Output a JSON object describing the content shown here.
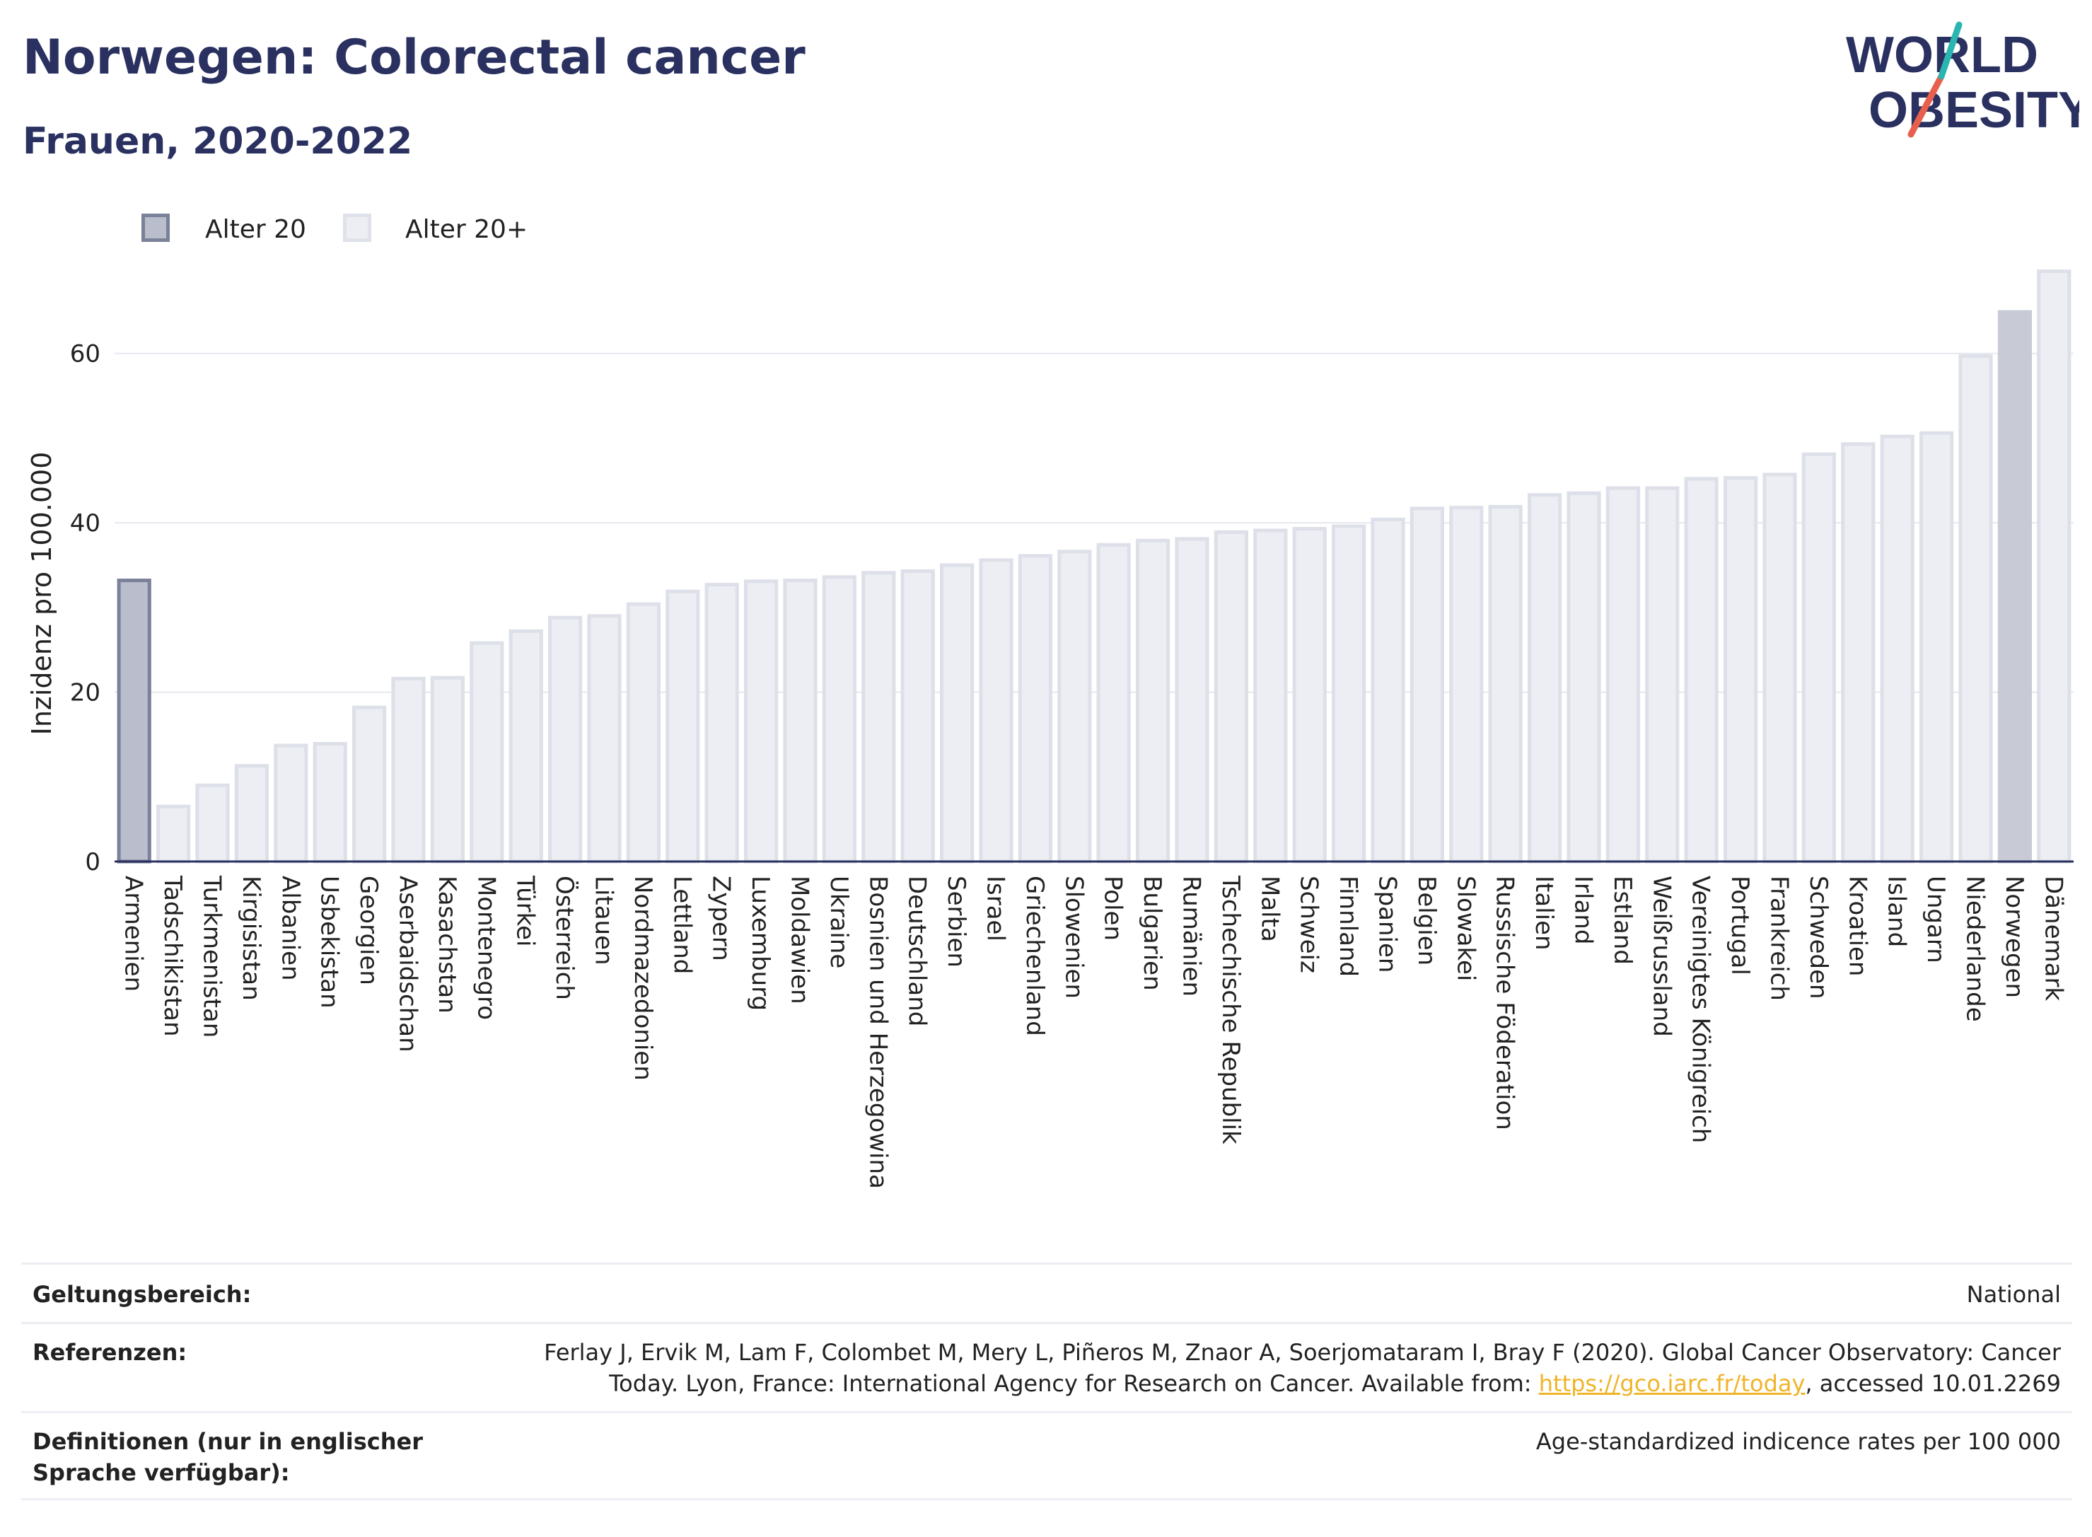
{
  "header": {
    "title": "Norwegen: Colorectal cancer",
    "subtitle": "Frauen, 2020-2022"
  },
  "logo": {
    "line1": "WORLD",
    "line2": "OBESITY",
    "accent_colors": [
      "#2bb5b0",
      "#e8604c"
    ]
  },
  "legend": [
    {
      "label": "Alter 20",
      "color": "#b9bdcc",
      "border": "#7a8199"
    },
    {
      "label": "Alter 20+",
      "color": "#eceef3",
      "border": "#dfe2ea"
    }
  ],
  "colors": {
    "age20": "#b9bdcc",
    "age20plus": "#eceef3",
    "highlight": "#c8cad6",
    "axis": "#2a3160"
  },
  "chart_data": {
    "type": "bar",
    "ylabel": "Inzidenz pro 100.000",
    "ylim": [
      0,
      70
    ],
    "yticks": [
      0,
      20,
      40,
      60
    ],
    "grid": true,
    "legend_position": "top-left",
    "categories": [
      "Armenien",
      "Tadschikistan",
      "Turkmenistan",
      "Kirgisistan",
      "Albanien",
      "Usbekistan",
      "Georgien",
      "Aserbaidschan",
      "Kasachstan",
      "Montenegro",
      "Türkei",
      "Österreich",
      "Litauen",
      "Nordmazedonien",
      "Lettland",
      "Zypern",
      "Luxemburg",
      "Moldawien",
      "Ukraine",
      "Bosnien und Herzegowina",
      "Deutschland",
      "Serbien",
      "Israel",
      "Griechenland",
      "Slowenien",
      "Polen",
      "Bulgarien",
      "Rumänien",
      "Tschechische Republik",
      "Malta",
      "Schweiz",
      "Finnland",
      "Spanien",
      "Belgien",
      "Slowakei",
      "Russische Föderation",
      "Italien",
      "Irland",
      "Estland",
      "Weißrussland",
      "Vereinigtes Königreich",
      "Portugal",
      "Frankreich",
      "Schweden",
      "Kroatien",
      "Island",
      "Ungarn",
      "Niederlande",
      "Norwegen",
      "Dänemark"
    ],
    "values": [
      33.2,
      6.5,
      9.0,
      11.3,
      13.7,
      13.9,
      18.2,
      21.6,
      21.7,
      25.8,
      27.2,
      28.8,
      29.0,
      30.4,
      31.9,
      32.7,
      33.1,
      33.2,
      33.6,
      34.1,
      34.3,
      35.0,
      35.6,
      36.1,
      36.6,
      37.4,
      37.9,
      38.1,
      38.9,
      39.1,
      39.3,
      39.6,
      40.4,
      41.7,
      41.8,
      41.9,
      43.3,
      43.5,
      44.1,
      44.1,
      45.2,
      45.3,
      45.7,
      48.1,
      49.3,
      50.2,
      50.6,
      59.7,
      64.9,
      69.7
    ],
    "series_kind": [
      "Alter 20",
      "Alter 20+",
      "Alter 20+",
      "Alter 20+",
      "Alter 20+",
      "Alter 20+",
      "Alter 20+",
      "Alter 20+",
      "Alter 20+",
      "Alter 20+",
      "Alter 20+",
      "Alter 20+",
      "Alter 20+",
      "Alter 20+",
      "Alter 20+",
      "Alter 20+",
      "Alter 20+",
      "Alter 20+",
      "Alter 20+",
      "Alter 20+",
      "Alter 20+",
      "Alter 20+",
      "Alter 20+",
      "Alter 20+",
      "Alter 20+",
      "Alter 20+",
      "Alter 20+",
      "Alter 20+",
      "Alter 20+",
      "Alter 20+",
      "Alter 20+",
      "Alter 20+",
      "Alter 20+",
      "Alter 20+",
      "Alter 20+",
      "Alter 20+",
      "Alter 20+",
      "Alter 20+",
      "Alter 20+",
      "Alter 20+",
      "Alter 20+",
      "Alter 20+",
      "Alter 20+",
      "Alter 20+",
      "Alter 20+",
      "Alter 20+",
      "Alter 20+",
      "Alter 20+",
      "Alter 20+",
      "Alter 20+"
    ],
    "highlight": "Norwegen"
  },
  "info": {
    "scope_key": "Geltungsbereich:",
    "scope_val": "National",
    "refs_key": "Referenzen:",
    "refs_val_line1": "Ferlay J, Ervik M, Lam F, Colombet M, Mery L, Piñeros M, Znaor A, Soerjomataram I, Bray F (2020). Global Cancer Observatory: Cancer",
    "refs_val_line2_pre": "Today. Lyon, France: International Agency for Research on Cancer. Available from: ",
    "refs_link": "https://gco.iarc.fr/today",
    "refs_val_line2_post": ", accessed 10.01.2269",
    "defs_key": "Definitionen (nur in englischer Sprache verfügbar):",
    "defs_val": "Age-standardized indicence rates per 100 000"
  }
}
